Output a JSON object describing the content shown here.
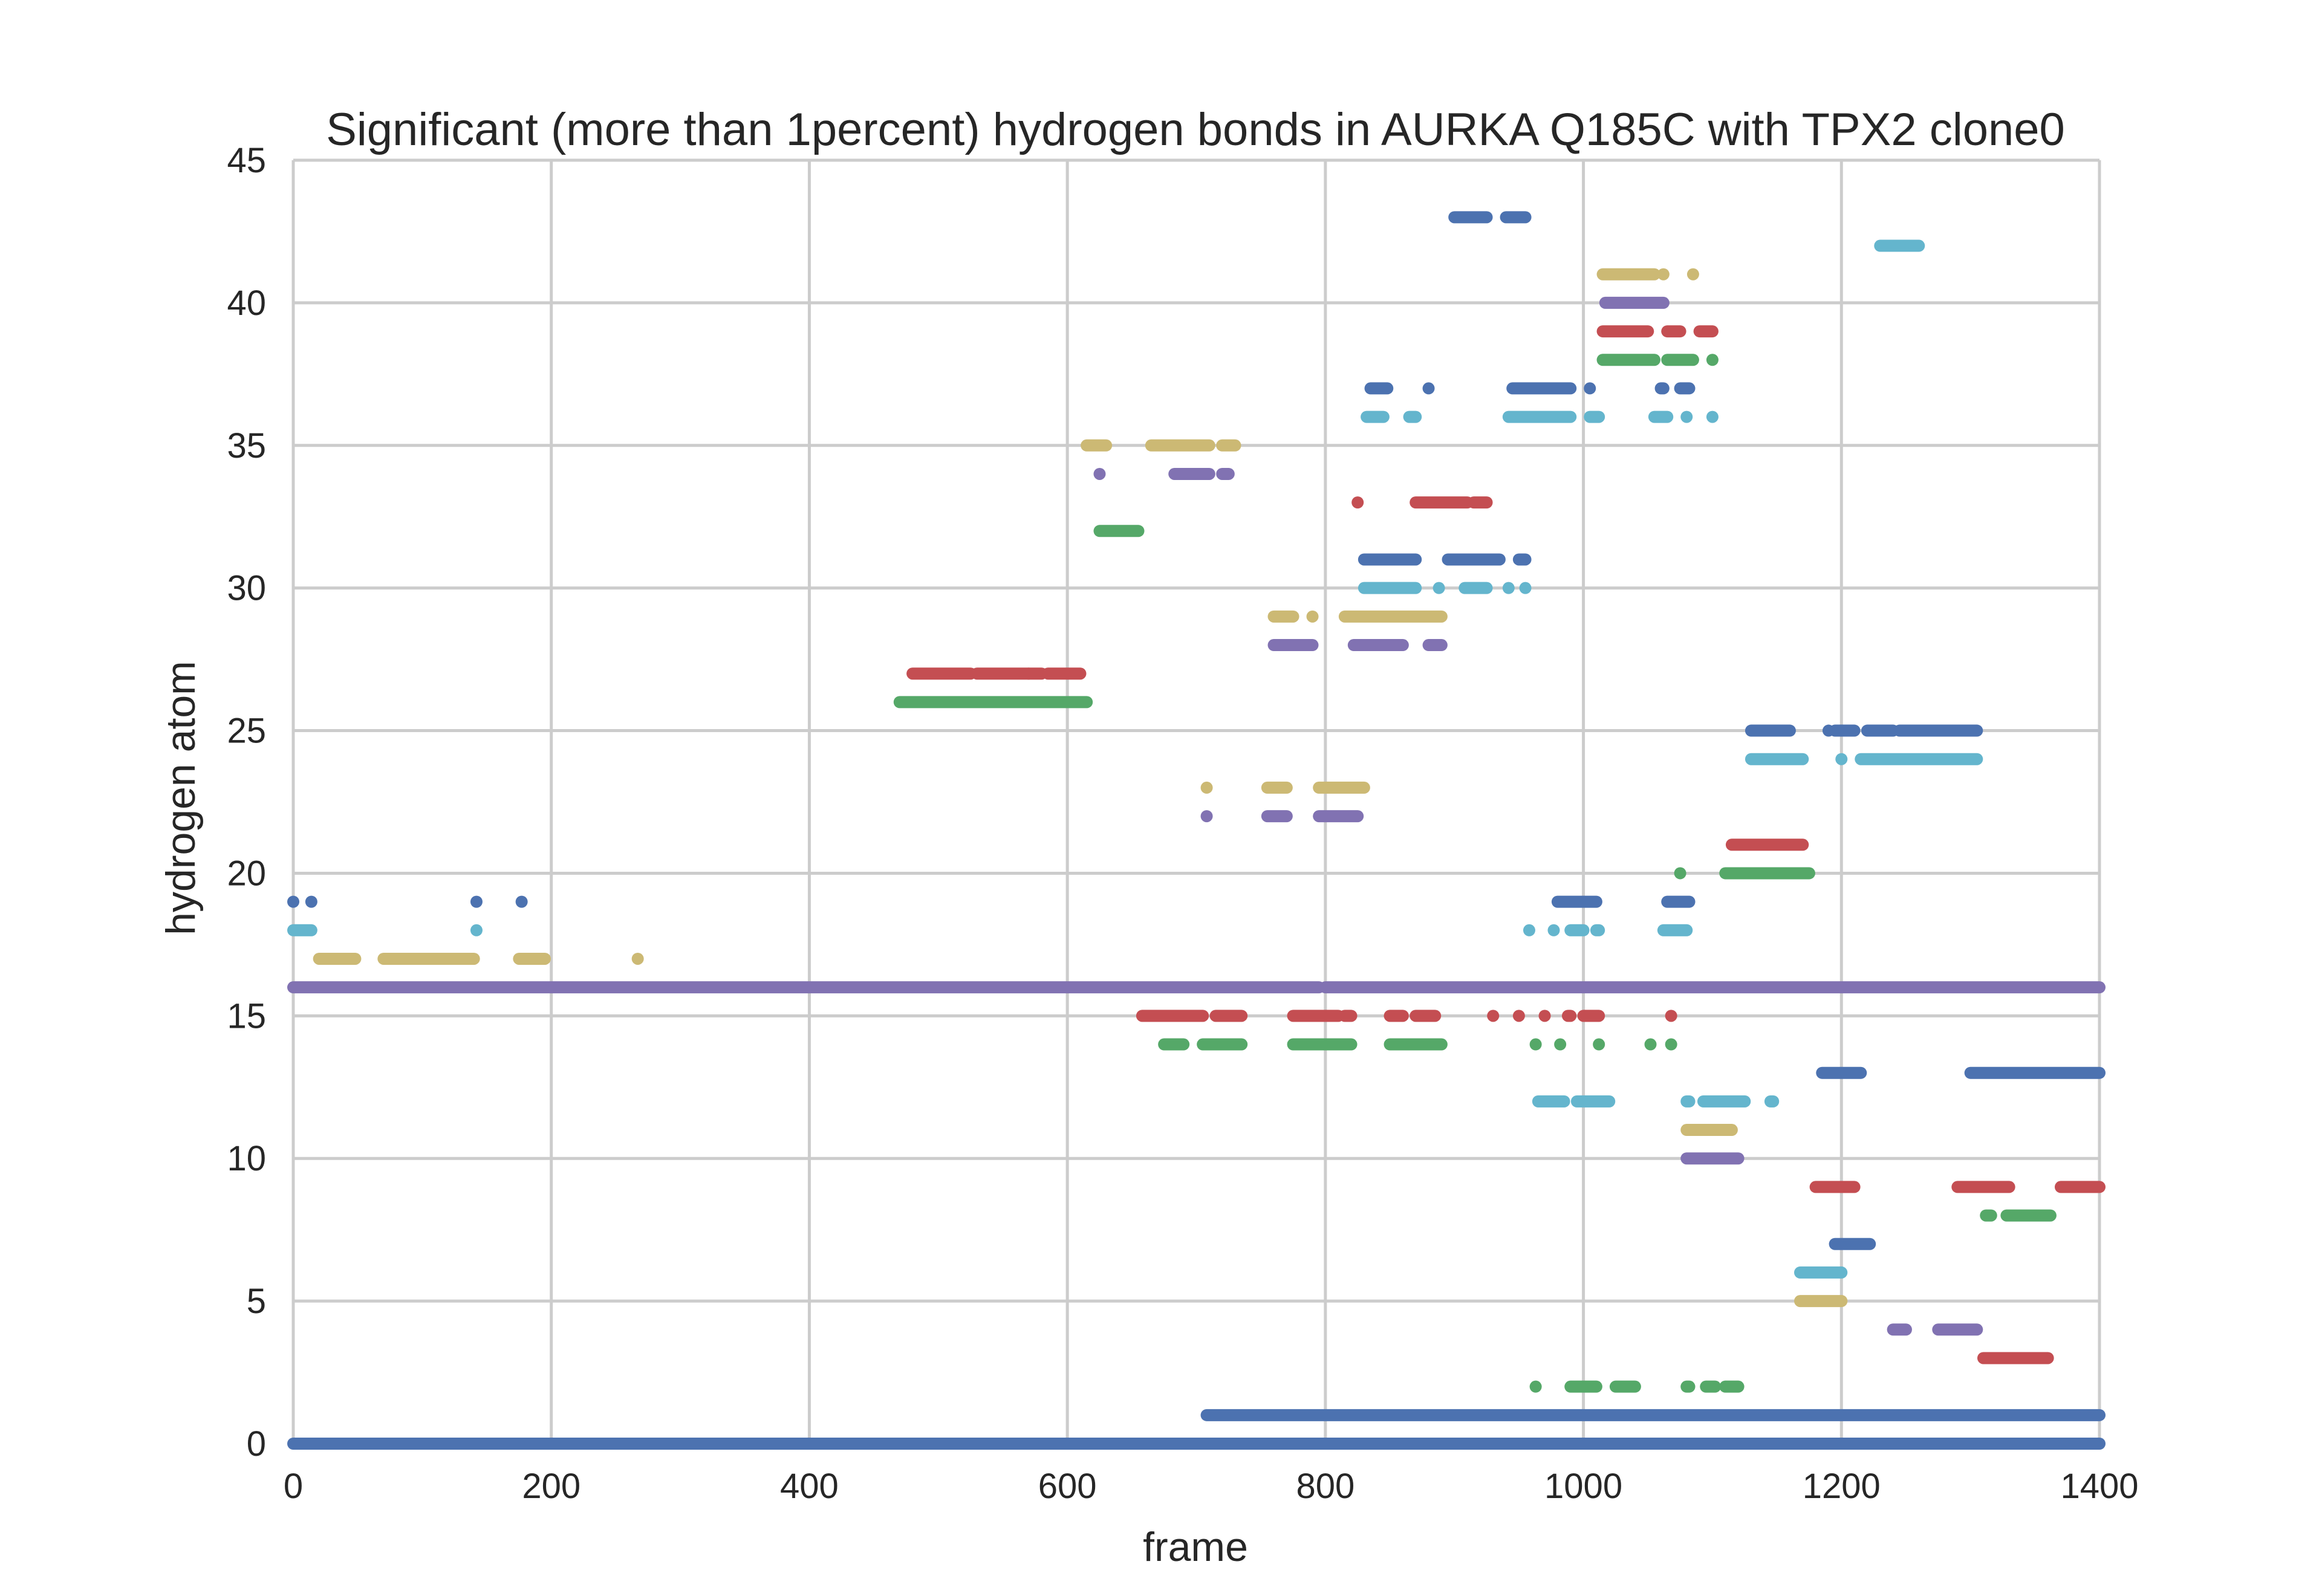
{
  "chart_data": {
    "type": "scatter",
    "title": "Significant (more than 1percent) hydrogen bonds in AURKA Q185C with TPX2 clone0",
    "xlabel": "frame",
    "ylabel": "hydrogen atom",
    "xlim": [
      0,
      1400
    ],
    "ylim": [
      0,
      45
    ],
    "xticks": [
      0,
      200,
      400,
      600,
      800,
      1000,
      1200,
      1400
    ],
    "yticks": [
      0,
      5,
      10,
      15,
      20,
      25,
      30,
      35,
      40,
      45
    ],
    "xtick_labels": [
      "0",
      "200",
      "400",
      "600",
      "800",
      "1000",
      "1200",
      "1400"
    ],
    "ytick_labels": [
      "0",
      "5",
      "10",
      "15",
      "20",
      "25",
      "30",
      "35",
      "40",
      "45"
    ],
    "grid": true,
    "legend": "none",
    "colors": {
      "blue": "#4c72b0",
      "green": "#55a868",
      "red": "#c44e52",
      "purple": "#8172b2",
      "yellow": "#ccb974",
      "cyan": "#64b5cd"
    },
    "series": [
      {
        "color": "blue",
        "y": 0,
        "segments": [
          [
            0,
            1400
          ]
        ]
      },
      {
        "color": "blue",
        "y": 1,
        "segments": [
          [
            708,
            1400
          ]
        ]
      },
      {
        "color": "green",
        "y": 2,
        "segments": [
          [
            963,
            963
          ],
          [
            990,
            1010
          ],
          [
            1025,
            1040
          ],
          [
            1080,
            1082
          ],
          [
            1095,
            1102
          ],
          [
            1110,
            1120
          ]
        ]
      },
      {
        "color": "red",
        "y": 3,
        "segments": [
          [
            1310,
            1360
          ]
        ]
      },
      {
        "color": "purple",
        "y": 4,
        "segments": [
          [
            1240,
            1250
          ],
          [
            1275,
            1305
          ]
        ]
      },
      {
        "color": "yellow",
        "y": 5,
        "segments": [
          [
            1168,
            1200
          ]
        ]
      },
      {
        "color": "cyan",
        "y": 6,
        "segments": [
          [
            1168,
            1200
          ]
        ]
      },
      {
        "color": "blue",
        "y": 7,
        "segments": [
          [
            1195,
            1222
          ]
        ]
      },
      {
        "color": "green",
        "y": 8,
        "segments": [
          [
            1312,
            1316
          ],
          [
            1328,
            1362
          ]
        ]
      },
      {
        "color": "red",
        "y": 9,
        "segments": [
          [
            1180,
            1210
          ],
          [
            1290,
            1330
          ],
          [
            1370,
            1400
          ]
        ]
      },
      {
        "color": "purple",
        "y": 10,
        "segments": [
          [
            1080,
            1120
          ]
        ]
      },
      {
        "color": "yellow",
        "y": 11,
        "segments": [
          [
            1080,
            1115
          ]
        ]
      },
      {
        "color": "cyan",
        "y": 12,
        "segments": [
          [
            965,
            985
          ],
          [
            995,
            1020
          ],
          [
            1080,
            1082
          ],
          [
            1093,
            1125
          ],
          [
            1145,
            1147
          ]
        ]
      },
      {
        "color": "blue",
        "y": 13,
        "segments": [
          [
            1185,
            1215
          ],
          [
            1300,
            1400
          ]
        ]
      },
      {
        "color": "green",
        "y": 14,
        "segments": [
          [
            675,
            690
          ],
          [
            705,
            735
          ],
          [
            775,
            820
          ],
          [
            850,
            890
          ],
          [
            963,
            963
          ],
          [
            982,
            982
          ],
          [
            1012,
            1012
          ],
          [
            1052,
            1052
          ],
          [
            1068,
            1068
          ]
        ]
      },
      {
        "color": "red",
        "y": 15,
        "segments": [
          [
            658,
            705
          ],
          [
            715,
            735
          ],
          [
            775,
            810
          ],
          [
            815,
            820
          ],
          [
            850,
            860
          ],
          [
            870,
            885
          ],
          [
            930,
            930
          ],
          [
            950,
            950
          ],
          [
            970,
            970
          ],
          [
            988,
            990
          ],
          [
            1000,
            1012
          ],
          [
            1068,
            1068
          ]
        ]
      },
      {
        "color": "purple",
        "y": 16,
        "segments": [
          [
            0,
            795
          ],
          [
            800,
            1400
          ]
        ]
      },
      {
        "color": "yellow",
        "y": 17,
        "segments": [
          [
            20,
            48
          ],
          [
            70,
            140
          ],
          [
            175,
            195
          ],
          [
            267,
            267
          ]
        ]
      },
      {
        "color": "cyan",
        "y": 18,
        "segments": [
          [
            0,
            14
          ],
          [
            142,
            142
          ],
          [
            958,
            958
          ],
          [
            977,
            977
          ],
          [
            990,
            1000
          ],
          [
            1010,
            1012
          ],
          [
            1062,
            1080
          ]
        ]
      },
      {
        "color": "blue",
        "y": 19,
        "segments": [
          [
            0,
            0
          ],
          [
            14,
            14
          ],
          [
            142,
            142
          ],
          [
            177,
            177
          ],
          [
            980,
            1010
          ],
          [
            1065,
            1082
          ]
        ]
      },
      {
        "color": "green",
        "y": 20,
        "segments": [
          [
            1075,
            1075
          ],
          [
            1110,
            1175
          ]
        ]
      },
      {
        "color": "red",
        "y": 21,
        "segments": [
          [
            1115,
            1170
          ]
        ]
      },
      {
        "color": "purple",
        "y": 22,
        "segments": [
          [
            708,
            708
          ],
          [
            755,
            770
          ],
          [
            795,
            825
          ]
        ]
      },
      {
        "color": "yellow",
        "y": 23,
        "segments": [
          [
            708,
            708
          ],
          [
            755,
            770
          ],
          [
            795,
            830
          ]
        ]
      },
      {
        "color": "cyan",
        "y": 24,
        "segments": [
          [
            1130,
            1170
          ],
          [
            1200,
            1200
          ],
          [
            1215,
            1305
          ]
        ]
      },
      {
        "color": "blue",
        "y": 25,
        "segments": [
          [
            1130,
            1160
          ],
          [
            1190,
            1190
          ],
          [
            1195,
            1210
          ],
          [
            1220,
            1240
          ],
          [
            1245,
            1305
          ]
        ]
      },
      {
        "color": "green",
        "y": 26,
        "segments": [
          [
            470,
            615
          ]
        ]
      },
      {
        "color": "red",
        "y": 27,
        "segments": [
          [
            480,
            525
          ],
          [
            530,
            570
          ],
          [
            580,
            570
          ],
          [
            585,
            610
          ]
        ]
      },
      {
        "color": "purple",
        "y": 28,
        "segments": [
          [
            760,
            790
          ],
          [
            822,
            860
          ],
          [
            880,
            890
          ]
        ]
      },
      {
        "color": "yellow",
        "y": 29,
        "segments": [
          [
            760,
            775
          ],
          [
            790,
            790
          ],
          [
            815,
            890
          ]
        ]
      },
      {
        "color": "cyan",
        "y": 30,
        "segments": [
          [
            830,
            870
          ],
          [
            888,
            888
          ],
          [
            908,
            925
          ],
          [
            942,
            942
          ],
          [
            955,
            955
          ]
        ]
      },
      {
        "color": "blue",
        "y": 31,
        "segments": [
          [
            830,
            870
          ],
          [
            895,
            935
          ],
          [
            950,
            955
          ]
        ]
      },
      {
        "color": "green",
        "y": 32,
        "segments": [
          [
            625,
            655
          ]
        ]
      },
      {
        "color": "red",
        "y": 33,
        "segments": [
          [
            825,
            825
          ],
          [
            870,
            910
          ],
          [
            915,
            925
          ]
        ]
      },
      {
        "color": "purple",
        "y": 34,
        "segments": [
          [
            625,
            625
          ],
          [
            683,
            710
          ],
          [
            720,
            725
          ]
        ]
      },
      {
        "color": "yellow",
        "y": 35,
        "segments": [
          [
            615,
            630
          ],
          [
            665,
            710
          ],
          [
            720,
            730
          ]
        ]
      },
      {
        "color": "cyan",
        "y": 36,
        "segments": [
          [
            832,
            845
          ],
          [
            865,
            870
          ],
          [
            942,
            990
          ],
          [
            1005,
            1012
          ],
          [
            1055,
            1065
          ],
          [
            1080,
            1080
          ],
          [
            1100,
            1100
          ]
        ]
      },
      {
        "color": "blue",
        "y": 37,
        "segments": [
          [
            835,
            848
          ],
          [
            880,
            880
          ],
          [
            945,
            990
          ],
          [
            1005,
            1005
          ],
          [
            1060,
            1062
          ],
          [
            1075,
            1082
          ]
        ]
      },
      {
        "color": "green",
        "y": 38,
        "segments": [
          [
            1015,
            1055
          ],
          [
            1065,
            1085
          ],
          [
            1100,
            1100
          ]
        ]
      },
      {
        "color": "red",
        "y": 39,
        "segments": [
          [
            1015,
            1050
          ],
          [
            1065,
            1075
          ],
          [
            1090,
            1100
          ]
        ]
      },
      {
        "color": "purple",
        "y": 40,
        "segments": [
          [
            1017,
            1062
          ]
        ]
      },
      {
        "color": "yellow",
        "y": 41,
        "segments": [
          [
            1015,
            1055
          ],
          [
            1062,
            1062
          ],
          [
            1085,
            1085
          ]
        ]
      },
      {
        "color": "blue",
        "y": 43,
        "segments": [
          [
            900,
            925
          ],
          [
            940,
            955
          ]
        ]
      },
      {
        "color": "cyan",
        "y": 42,
        "segments": [
          [
            1230,
            1260
          ]
        ]
      }
    ]
  }
}
